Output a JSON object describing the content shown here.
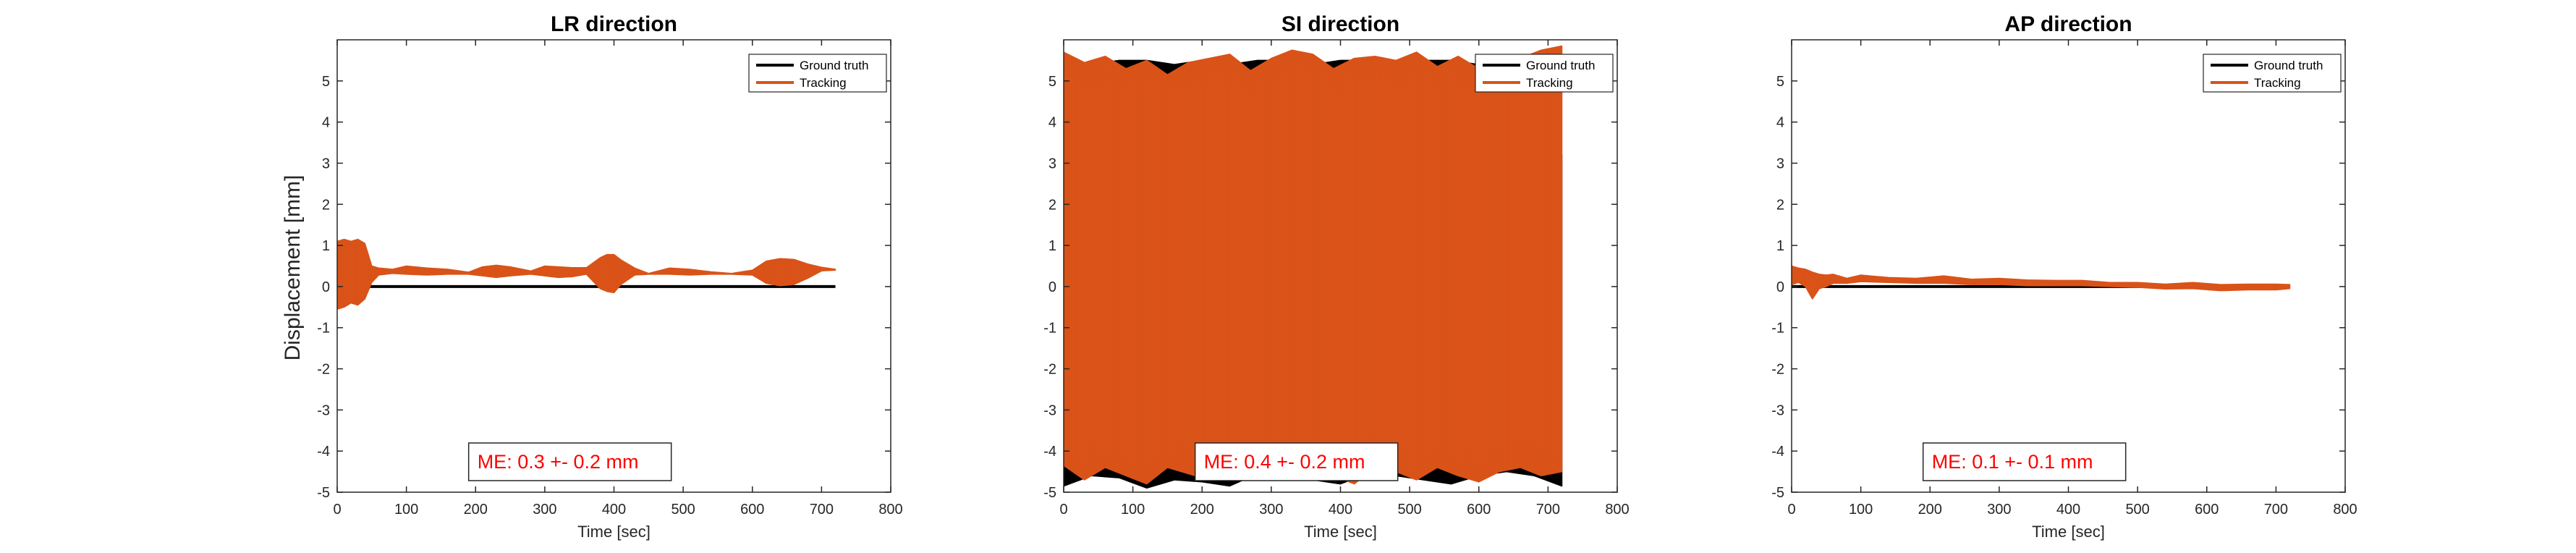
{
  "figure": {
    "ylabel": "Displacement [mm]",
    "colors": {
      "ground_truth": "#000000",
      "tracking": "#d95319",
      "me_text": "#ff0000",
      "axis": "#262626"
    }
  },
  "chart_data": [
    {
      "type": "line",
      "title": "LR direction",
      "xlabel": "Time [sec]",
      "ylabel": "Displacement [mm]",
      "xlim": [
        0,
        800
      ],
      "ylim": [
        -5,
        6
      ],
      "xticks": [
        "0",
        "100",
        "200",
        "300",
        "400",
        "500",
        "600",
        "700",
        "800"
      ],
      "yticks": [
        "-5",
        "-4",
        "-3",
        "-2",
        "-1",
        "0",
        "1",
        "2",
        "3",
        "4",
        "5"
      ],
      "legend": {
        "placement": "top-right",
        "entries": [
          "Ground truth",
          "Tracking"
        ]
      },
      "annotation": "ME: 0.3 +- 0.2 mm",
      "series": [
        {
          "name": "Ground truth",
          "x": [
            45,
            720
          ],
          "y": [
            0,
            0
          ],
          "color": "#000000"
        },
        {
          "name": "Tracking",
          "color": "#d95319",
          "envelope_x": [
            0,
            10,
            20,
            30,
            40,
            50,
            60,
            80,
            100,
            130,
            160,
            190,
            210,
            230,
            250,
            280,
            300,
            320,
            340,
            360,
            380,
            390,
            400,
            410,
            430,
            450,
            480,
            510,
            540,
            570,
            600,
            620,
            640,
            660,
            680,
            700,
            720
          ],
          "upper": [
            1.1,
            1.15,
            1.1,
            1.15,
            1.05,
            0.5,
            0.45,
            0.42,
            0.5,
            0.45,
            0.42,
            0.35,
            0.48,
            0.52,
            0.48,
            0.38,
            0.5,
            0.48,
            0.46,
            0.46,
            0.7,
            0.78,
            0.78,
            0.65,
            0.45,
            0.32,
            0.45,
            0.42,
            0.36,
            0.32,
            0.4,
            0.62,
            0.68,
            0.66,
            0.55,
            0.47,
            0.42
          ],
          "lower": [
            -0.55,
            -0.5,
            -0.4,
            -0.45,
            -0.3,
            0.1,
            0.28,
            0.32,
            0.3,
            0.28,
            0.3,
            0.3,
            0.26,
            0.22,
            0.26,
            0.3,
            0.26,
            0.22,
            0.24,
            0.3,
            -0.05,
            -0.12,
            -0.15,
            0.05,
            0.28,
            0.3,
            0.3,
            0.28,
            0.3,
            0.3,
            0.28,
            0.08,
            0.02,
            0.05,
            0.2,
            0.38,
            0.4
          ]
        }
      ]
    },
    {
      "type": "line",
      "title": "SI direction",
      "xlabel": "Time [sec]",
      "ylabel": "",
      "xlim": [
        0,
        800
      ],
      "ylim": [
        -5,
        6
      ],
      "xticks": [
        "0",
        "100",
        "200",
        "300",
        "400",
        "500",
        "600",
        "700",
        "800"
      ],
      "yticks": [
        "-5",
        "-4",
        "-3",
        "-2",
        "-1",
        "0",
        "1",
        "2",
        "3",
        "4",
        "5"
      ],
      "legend": {
        "placement": "top-right",
        "entries": [
          "Ground truth",
          "Tracking"
        ]
      },
      "annotation": "ME: 0.4 +- 0.2 mm",
      "series": [
        {
          "name": "Ground truth",
          "color": "#000000",
          "envelope_x": [
            0,
            40,
            80,
            120,
            160,
            200,
            240,
            280,
            320,
            360,
            400,
            440,
            480,
            520,
            560,
            600,
            640,
            680,
            720
          ],
          "upper": [
            5.3,
            5.4,
            5.5,
            5.5,
            5.4,
            5.5,
            5.4,
            5.5,
            5.5,
            5.4,
            5.5,
            5.5,
            5.4,
            5.5,
            5.5,
            5.4,
            5.5,
            5.5,
            3.2
          ],
          "lower": [
            -4.85,
            -4.6,
            -4.65,
            -4.9,
            -4.7,
            -4.75,
            -4.85,
            -4.55,
            -4.6,
            -4.7,
            -4.8,
            -4.55,
            -4.6,
            -4.7,
            -4.8,
            -4.6,
            -4.5,
            -4.6,
            -4.85
          ]
        },
        {
          "name": "Tracking",
          "color": "#d95319",
          "envelope_x": [
            0,
            30,
            60,
            90,
            120,
            150,
            180,
            210,
            240,
            270,
            300,
            330,
            360,
            390,
            420,
            450,
            480,
            510,
            540,
            570,
            600,
            630,
            660,
            690,
            720
          ],
          "upper": [
            5.7,
            5.45,
            5.6,
            5.3,
            5.5,
            5.15,
            5.45,
            5.55,
            5.65,
            5.25,
            5.55,
            5.75,
            5.65,
            5.3,
            5.55,
            5.6,
            5.5,
            5.7,
            5.35,
            5.6,
            5.3,
            5.6,
            5.55,
            5.75,
            5.85
          ],
          "lower": [
            -4.35,
            -4.7,
            -4.4,
            -4.6,
            -4.8,
            -4.4,
            -4.55,
            -4.7,
            -4.5,
            -4.6,
            -4.4,
            -4.7,
            -4.5,
            -4.6,
            -4.8,
            -4.4,
            -4.5,
            -4.7,
            -4.4,
            -4.6,
            -4.75,
            -4.5,
            -4.4,
            -4.6,
            -4.5
          ]
        }
      ]
    },
    {
      "type": "line",
      "title": "AP direction",
      "xlabel": "Time [sec]",
      "ylabel": "",
      "xlim": [
        0,
        800
      ],
      "ylim": [
        -5,
        6
      ],
      "xticks": [
        "0",
        "100",
        "200",
        "300",
        "400",
        "500",
        "600",
        "700",
        "800"
      ],
      "yticks": [
        "-5",
        "-4",
        "-3",
        "-2",
        "-1",
        "0",
        "1",
        "2",
        "3",
        "4",
        "5"
      ],
      "legend": {
        "placement": "top-right",
        "entries": [
          "Ground truth",
          "Tracking"
        ]
      },
      "annotation": "ME: 0.1 +- 0.1 mm",
      "series": [
        {
          "name": "Ground truth",
          "x": [
            0,
            720
          ],
          "y": [
            0,
            0
          ],
          "color": "#000000"
        },
        {
          "name": "Tracking",
          "color": "#d95319",
          "envelope_x": [
            0,
            10,
            20,
            30,
            40,
            50,
            60,
            80,
            100,
            140,
            180,
            220,
            260,
            300,
            340,
            380,
            420,
            460,
            500,
            540,
            580,
            620,
            660,
            700,
            720
          ],
          "upper": [
            0.5,
            0.45,
            0.42,
            0.35,
            0.3,
            0.28,
            0.3,
            0.2,
            0.28,
            0.22,
            0.2,
            0.26,
            0.18,
            0.2,
            0.16,
            0.15,
            0.15,
            0.1,
            0.1,
            0.06,
            0.1,
            0.05,
            0.06,
            0.06,
            0.05
          ],
          "lower": [
            0.05,
            0.1,
            0.0,
            -0.3,
            -0.05,
            0.0,
            0.08,
            0.08,
            0.12,
            0.1,
            0.08,
            0.08,
            0.05,
            0.05,
            0.02,
            0.02,
            0.02,
            0.0,
            -0.02,
            -0.06,
            -0.05,
            -0.1,
            -0.08,
            -0.08,
            -0.05
          ]
        }
      ]
    }
  ]
}
